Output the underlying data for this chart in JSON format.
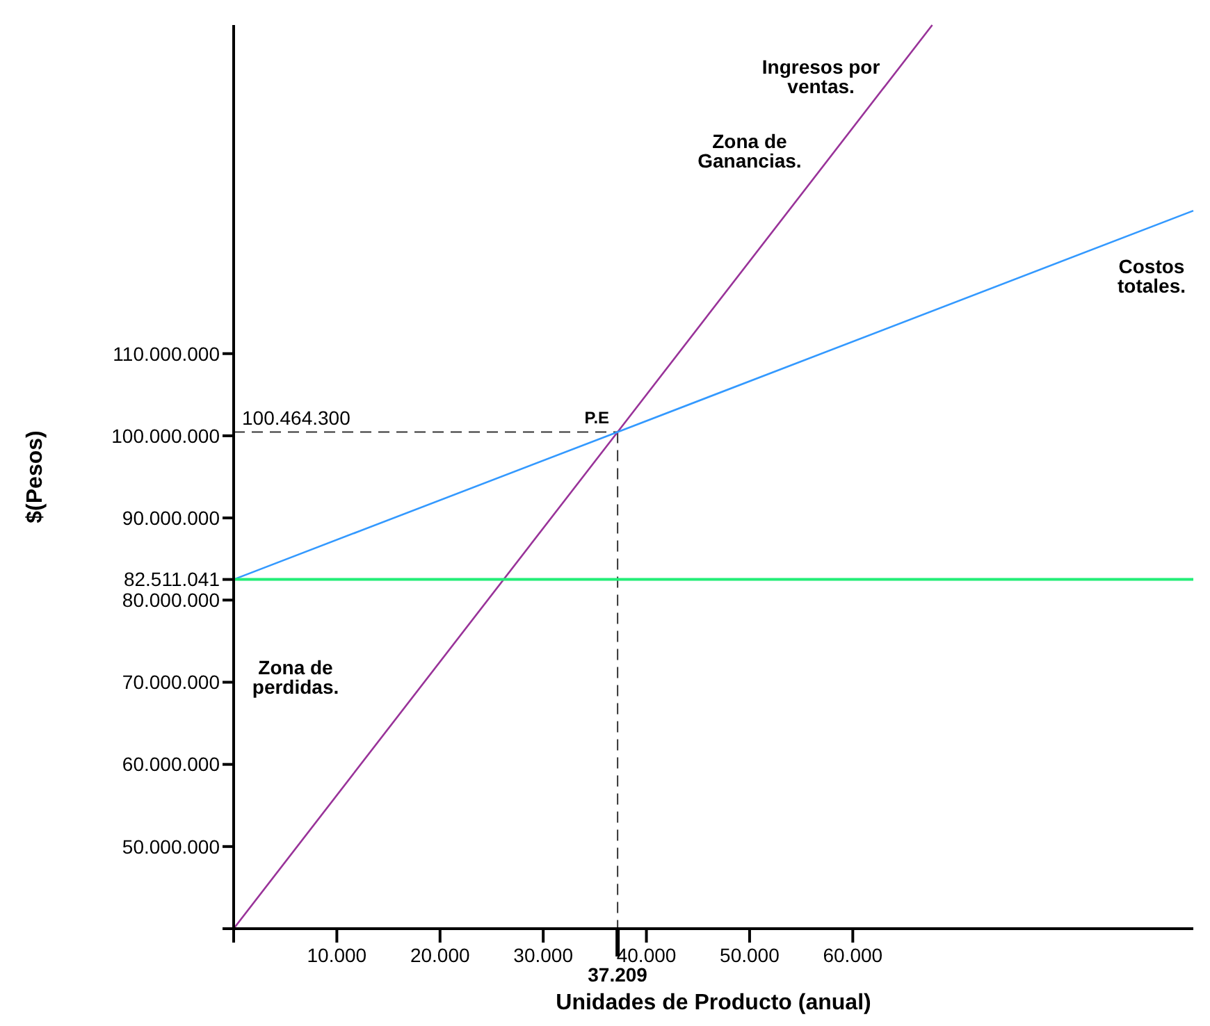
{
  "chart_data": {
    "type": "line",
    "xlabel": "Unidades de Producto (anual)",
    "ylabel": "$(Pesos)",
    "xlim": [
      0,
      93000
    ],
    "ylim": [
      40000000,
      150000000
    ],
    "xticks": [
      {
        "value": 0,
        "label": null
      },
      {
        "value": 10000,
        "label": "10.000"
      },
      {
        "value": 20000,
        "label": "20.000"
      },
      {
        "value": 30000,
        "label": "30.000"
      },
      {
        "value": 40000,
        "label": "40.000"
      },
      {
        "value": 50000,
        "label": "50.000"
      },
      {
        "value": 60000,
        "label": "60.000"
      }
    ],
    "yticks": [
      {
        "value": 40000000,
        "label": null
      },
      {
        "value": 50000000,
        "label": "50.000.000"
      },
      {
        "value": 60000000,
        "label": "60.000.000"
      },
      {
        "value": 70000000,
        "label": "70.000.000"
      },
      {
        "value": 80000000,
        "label": "80.000.000"
      },
      {
        "value": 82511041,
        "label": "82.511.041"
      },
      {
        "value": 90000000,
        "label": "90.000.000"
      },
      {
        "value": 100000000,
        "label": "100.000.000"
      },
      {
        "value": 110000000,
        "label": "110.000.000"
      }
    ],
    "series": [
      {
        "name": "Ingresos por ventas.",
        "color": "#993399",
        "x": [
          0,
          37209,
          67700
        ],
        "values": [
          40000000,
          100464300,
          150000000
        ]
      },
      {
        "name": "Costos totales.",
        "color": "#3399ff",
        "x": [
          0,
          37209,
          93000
        ],
        "values": [
          82511041,
          100464300,
          127400000
        ]
      },
      {
        "color": "#22ee77",
        "x": [
          0,
          93000
        ],
        "values": [
          82511041,
          82511041
        ]
      }
    ],
    "ref_lines": [
      {
        "axis": "y",
        "value": 100464300,
        "label": "100.464.300",
        "line_style": "dashed",
        "color": "#333333"
      },
      {
        "axis": "x",
        "value": 37209,
        "label": "37.209",
        "line_style": "dashed",
        "color": "#333333"
      }
    ],
    "annotations": [
      {
        "text": "P.E",
        "x": 37209,
        "y": 100464300
      },
      "Zona de Ganancias.",
      "Zona de perdidas."
    ],
    "grid": false,
    "marker": "none",
    "line_style": "solid"
  }
}
